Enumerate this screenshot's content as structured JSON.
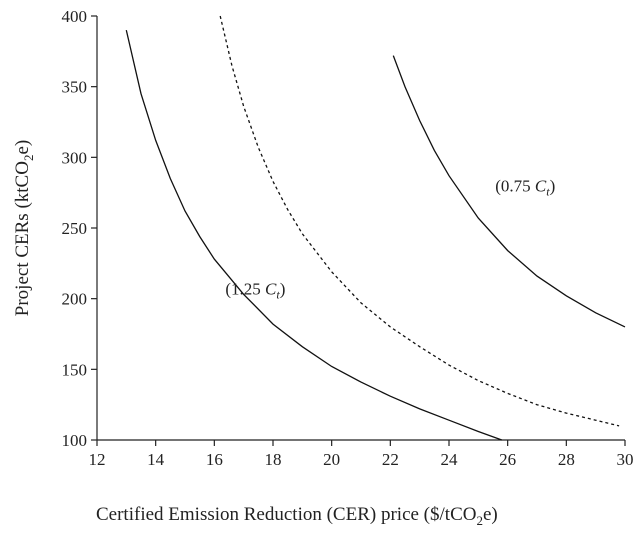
{
  "chart_data": {
    "type": "line",
    "title": "",
    "xlabel": "Certified Emission Reduction (CER) price ($/tCO2e)",
    "xlabel_parts": {
      "pre": "Certified Emission Reduction (CER) price ($/tCO",
      "sub": "2",
      "post": "e)"
    },
    "ylabel": "Project CERs (ktCO2e)",
    "ylabel_parts": {
      "pre": "Project CERs (ktCO",
      "sub": "2",
      "post": "e)"
    },
    "xlim": [
      12,
      30
    ],
    "ylim": [
      100,
      400
    ],
    "xticks": [
      "12",
      "14",
      "16",
      "18",
      "20",
      "22",
      "24",
      "26",
      "28",
      "30"
    ],
    "yticks": [
      "100",
      "150",
      "200",
      "250",
      "300",
      "350",
      "400"
    ],
    "grid": false,
    "series": [
      {
        "label": "(1.25 Ct)",
        "style": "solid",
        "points": [
          [
            13.0,
            390
          ],
          [
            13.5,
            345
          ],
          [
            14.0,
            312
          ],
          [
            14.5,
            285
          ],
          [
            15.0,
            262
          ],
          [
            15.5,
            244
          ],
          [
            16.0,
            228
          ],
          [
            17.0,
            203
          ],
          [
            18.0,
            182
          ],
          [
            19.0,
            166
          ],
          [
            20.0,
            152
          ],
          [
            21.0,
            141
          ],
          [
            22.0,
            131
          ],
          [
            23.0,
            122
          ],
          [
            24.0,
            114
          ],
          [
            25.0,
            106
          ],
          [
            25.8,
            100
          ]
        ]
      },
      {
        "label": "",
        "style": "dashed",
        "points": [
          [
            16.2,
            400
          ],
          [
            16.6,
            365
          ],
          [
            17.0,
            336
          ],
          [
            17.5,
            307
          ],
          [
            18.0,
            283
          ],
          [
            18.5,
            263
          ],
          [
            19.0,
            246
          ],
          [
            20.0,
            219
          ],
          [
            21.0,
            197
          ],
          [
            22.0,
            180
          ],
          [
            23.0,
            166
          ],
          [
            24.0,
            153
          ],
          [
            25.0,
            142
          ],
          [
            26.0,
            133
          ],
          [
            27.0,
            125
          ],
          [
            28.0,
            119
          ],
          [
            29.0,
            114
          ],
          [
            29.8,
            110
          ]
        ]
      },
      {
        "label": "(0.75 Ct)",
        "style": "solid",
        "points": [
          [
            22.1,
            372
          ],
          [
            22.5,
            350
          ],
          [
            23.0,
            326
          ],
          [
            23.5,
            305
          ],
          [
            24.0,
            287
          ],
          [
            25.0,
            257
          ],
          [
            26.0,
            234
          ],
          [
            27.0,
            216
          ],
          [
            28.0,
            202
          ],
          [
            29.0,
            190
          ],
          [
            30.0,
            180
          ]
        ]
      }
    ],
    "annotations": [
      {
        "text_pre": "(1.25 ",
        "text_c": "C",
        "text_sub": "t",
        "text_post": ")",
        "x": 17.4,
        "y": 203
      },
      {
        "text_pre": "(0.75 ",
        "text_c": "C",
        "text_sub": "t",
        "text_post": ")",
        "x": 26.6,
        "y": 276
      }
    ]
  }
}
